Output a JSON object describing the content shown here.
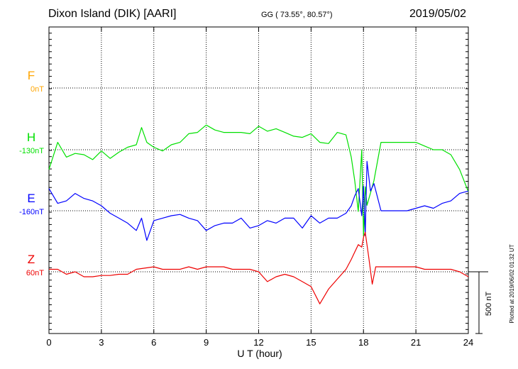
{
  "header": {
    "station": "Dixon Island (DIK)  [AARI]",
    "coords": "GG ( 73.55°,  80.57°)",
    "date": "2019/05/02"
  },
  "plotted_note": "Plotted at 2019/06/02 01:32 UT",
  "colors": {
    "F": "#ffa500",
    "H": "#00e000",
    "E": "#0000ff",
    "Z": "#ee0000",
    "grid": "#000000"
  },
  "chart_data": {
    "type": "line",
    "title": "Dixon Island (DIK)  [AARI]",
    "xlabel": "U T (hour)",
    "xlim": [
      0,
      24
    ],
    "xticks": [
      "0",
      "3",
      "6",
      "9",
      "12",
      "15",
      "18",
      "21",
      "24"
    ],
    "scale_bar": "500 nT",
    "grid": true,
    "series": [
      {
        "name": "F",
        "baseline_label": "0nT",
        "x": [],
        "y": []
      },
      {
        "name": "H",
        "baseline_label": "-130nT",
        "x": [
          0,
          0.5,
          1,
          1.5,
          2,
          2.5,
          3,
          3.5,
          4,
          4.5,
          5,
          5.3,
          5.6,
          6,
          6.5,
          7,
          7.5,
          8,
          8.5,
          9,
          9.5,
          10,
          10.5,
          11,
          11.5,
          12,
          12.5,
          13,
          13.5,
          14,
          14.5,
          15,
          15.5,
          16,
          16.5,
          17,
          17.3,
          17.5,
          17.7,
          17.9,
          18,
          18.1,
          18.2,
          18.4,
          18.6,
          19,
          19.5,
          20,
          20.5,
          21,
          21.5,
          22,
          22.5,
          23,
          23.5,
          24
        ],
        "y": [
          -160,
          60,
          -60,
          -30,
          -40,
          -80,
          -10,
          -70,
          -20,
          20,
          40,
          180,
          60,
          20,
          -10,
          40,
          60,
          130,
          140,
          200,
          160,
          140,
          140,
          140,
          130,
          190,
          150,
          170,
          140,
          110,
          100,
          130,
          60,
          50,
          140,
          120,
          -60,
          -250,
          -500,
          0,
          -700,
          -300,
          -450,
          -350,
          -250,
          60,
          60,
          60,
          60,
          60,
          30,
          0,
          0,
          -40,
          -160,
          -340
        ]
      },
      {
        "name": "E",
        "baseline_label": "-160nT",
        "x": [
          0,
          0.5,
          1,
          1.5,
          2,
          2.5,
          3,
          3.5,
          4,
          4.5,
          5,
          5.3,
          5.6,
          6,
          6.5,
          7,
          7.5,
          8,
          8.5,
          9,
          9.5,
          10,
          10.5,
          11,
          11.5,
          12,
          12.5,
          13,
          13.5,
          14,
          14.5,
          15,
          15.5,
          16,
          16.5,
          17,
          17.3,
          17.5,
          17.7,
          17.9,
          18,
          18.1,
          18.2,
          18.4,
          18.6,
          19,
          19.5,
          20,
          20.5,
          21,
          21.5,
          22,
          22.5,
          23,
          23.5,
          24
        ],
        "y": [
          180,
          60,
          80,
          140,
          100,
          80,
          40,
          -20,
          -60,
          -100,
          -160,
          -60,
          -240,
          -80,
          -60,
          -40,
          -30,
          -60,
          -80,
          -160,
          -120,
          -100,
          -100,
          -60,
          -140,
          -120,
          -80,
          -100,
          -60,
          -60,
          -140,
          -40,
          -100,
          -60,
          -60,
          -20,
          40,
          120,
          180,
          -40,
          200,
          -200,
          400,
          160,
          220,
          0,
          0,
          0,
          0,
          20,
          40,
          20,
          60,
          80,
          140,
          160
        ]
      },
      {
        "name": "Z",
        "baseline_label": "60nT",
        "x": [
          0,
          0.5,
          1,
          1.5,
          2,
          2.5,
          3,
          3.5,
          4,
          4.5,
          5,
          6,
          6.5,
          7,
          7.5,
          8,
          8.5,
          9,
          9.5,
          10,
          10.5,
          11,
          11.5,
          12,
          12.5,
          13,
          13.5,
          14,
          14.5,
          15,
          15.5,
          16,
          16.5,
          17,
          17.3,
          17.5,
          17.7,
          17.9,
          18,
          18.1,
          18.3,
          18.5,
          18.7,
          19,
          19.5,
          20,
          20.5,
          21,
          21.5,
          22,
          22.5,
          23,
          23.5,
          24
        ],
        "y": [
          20,
          20,
          -20,
          0,
          -40,
          -40,
          -30,
          -30,
          -20,
          -20,
          20,
          40,
          20,
          20,
          20,
          40,
          20,
          40,
          40,
          40,
          20,
          20,
          20,
          0,
          -80,
          -40,
          -20,
          -40,
          -80,
          -120,
          -260,
          -140,
          -60,
          20,
          100,
          160,
          220,
          200,
          280,
          320,
          120,
          -100,
          40,
          40,
          40,
          40,
          40,
          40,
          20,
          20,
          20,
          20,
          0,
          -40
        ]
      }
    ]
  }
}
